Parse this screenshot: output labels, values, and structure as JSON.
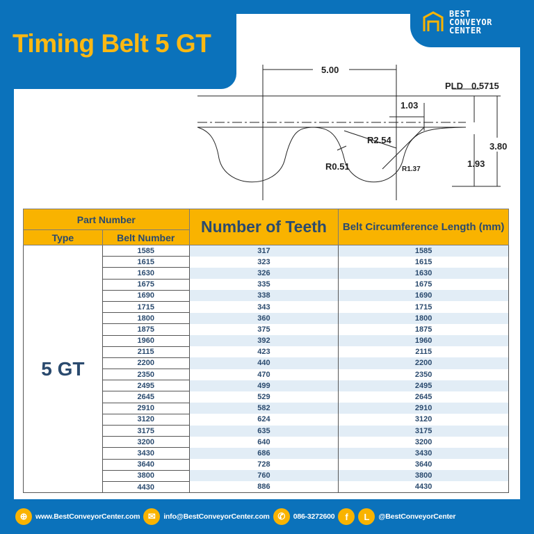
{
  "title": "Timing Belt 5 GT",
  "logo": {
    "line1": "BEST",
    "line2": "CONVEYOR",
    "line3": "CENTER"
  },
  "diagram": {
    "pitch": "5.00",
    "pld_label": "PLD",
    "pld": "0.5715",
    "d103": "1.03",
    "r254": "R2.54",
    "r051": "R0.51",
    "r137": "R1.37",
    "h380": "3.80",
    "h193": "1.93"
  },
  "table": {
    "part_number": "Part Number",
    "type_header": "Type",
    "belt_number_header": "Belt Number",
    "teeth_header": "Number of Teeth",
    "length_header": "Belt Circumference Length (mm)",
    "type": "5 GT",
    "rows": [
      [
        "1585",
        "317",
        "1585"
      ],
      [
        "1615",
        "323",
        "1615"
      ],
      [
        "1630",
        "326",
        "1630"
      ],
      [
        "1675",
        "335",
        "1675"
      ],
      [
        "1690",
        "338",
        "1690"
      ],
      [
        "1715",
        "343",
        "1715"
      ],
      [
        "1800",
        "360",
        "1800"
      ],
      [
        "1875",
        "375",
        "1875"
      ],
      [
        "1960",
        "392",
        "1960"
      ],
      [
        "2115",
        "423",
        "2115"
      ],
      [
        "2200",
        "440",
        "2200"
      ],
      [
        "2350",
        "470",
        "2350"
      ],
      [
        "2495",
        "499",
        "2495"
      ],
      [
        "2645",
        "529",
        "2645"
      ],
      [
        "2910",
        "582",
        "2910"
      ],
      [
        "3120",
        "624",
        "3120"
      ],
      [
        "3175",
        "635",
        "3175"
      ],
      [
        "3200",
        "640",
        "3200"
      ],
      [
        "3430",
        "686",
        "3430"
      ],
      [
        "3640",
        "728",
        "3640"
      ],
      [
        "3800",
        "760",
        "3800"
      ],
      [
        "4430",
        "886",
        "4430"
      ]
    ]
  },
  "footer": {
    "website": "www.BestConveyorCenter.com",
    "email": "info@BestConveyorCenter.com",
    "phone": "086-3272600",
    "social": "@BestConveyorCenter"
  },
  "colors": {
    "blue": "#0b72bb",
    "yellow": "#f9b300",
    "text": "#2a4a6e"
  }
}
